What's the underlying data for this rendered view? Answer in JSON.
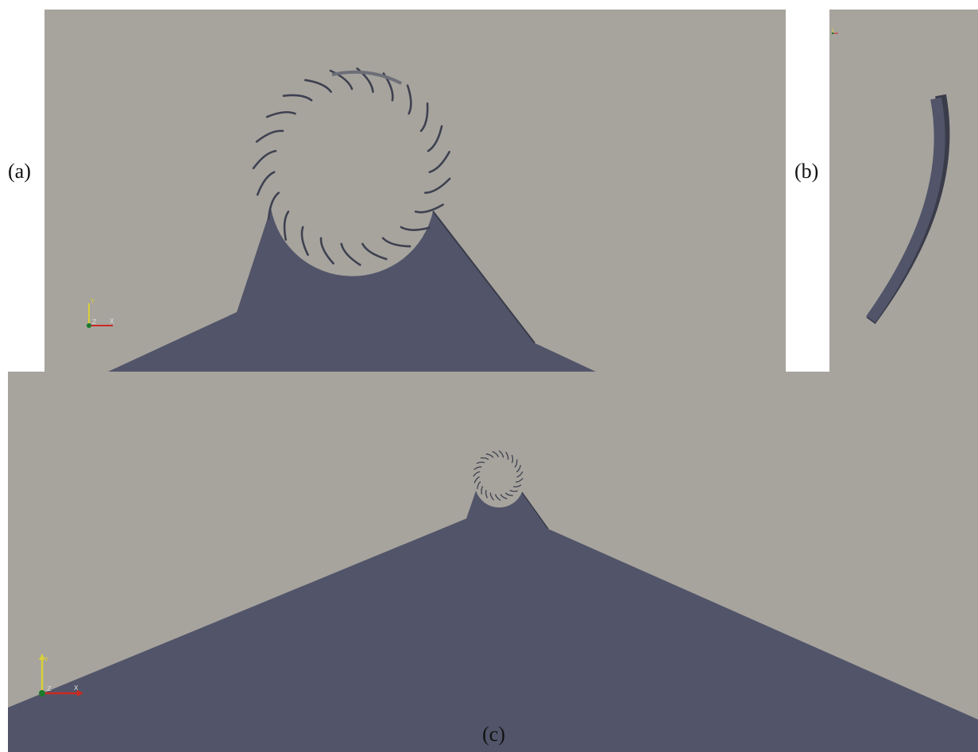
{
  "labels": {
    "a": "(a)",
    "b": "(b)",
    "c": "(c)"
  },
  "axis_triad": {
    "y": "Y",
    "z": "Z",
    "x": "X"
  },
  "colors": {
    "background": "#a7a49e",
    "solid": "#525569",
    "blade": "#3e4150",
    "x_axis": "#cc2a22",
    "y_axis": "#d8cf3a",
    "origin": "#1a7a2a"
  },
  "turbine": {
    "blade_count": 23
  }
}
